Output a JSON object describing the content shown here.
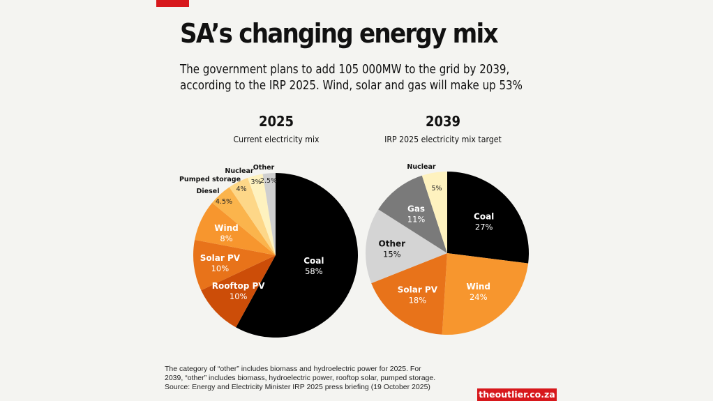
{
  "header": {
    "title": "SA’s changing energy mix",
    "subtitle_line1": "The government plans to add 105 000MW to the grid by 2039,",
    "subtitle_line2": "according to the IRP 2025. Wind, solar and gas will make up 53%",
    "accent_color": "#d7181c"
  },
  "chart_data": [
    {
      "type": "pie",
      "title": "2025",
      "subtitle": "Current electricity mix",
      "direction": "clockwise from top",
      "slices": [
        {
          "label": "Coal",
          "value": 58,
          "display": "58%",
          "color": "#000000",
          "text_color": "#ffffff",
          "label_position": "inside"
        },
        {
          "label": "Rooftop PV",
          "value": 10,
          "display": "10%",
          "color": "#cc4d08",
          "text_color": "#ffffff",
          "label_position": "inside"
        },
        {
          "label": "Solar PV",
          "value": 10,
          "display": "10%",
          "color": "#e8731a",
          "text_color": "#ffffff",
          "label_position": "inside"
        },
        {
          "label": "Wind",
          "value": 8,
          "display": "8%",
          "color": "#f7962e",
          "text_color": "#ffffff",
          "label_position": "inside"
        },
        {
          "label": "Diesel",
          "value": 4.5,
          "display": "4.5%",
          "color": "#fbb44c",
          "text_color": "#222222",
          "label_position": "outside"
        },
        {
          "label": "Pumped storage",
          "value": 4,
          "display": "4%",
          "color": "#fdd788",
          "text_color": "#222222",
          "label_position": "outside"
        },
        {
          "label": "Nuclear",
          "value": 3,
          "display": "3%",
          "color": "#fef2bf",
          "text_color": "#222222",
          "label_position": "outside"
        },
        {
          "label": "Other",
          "value": 2.5,
          "display": "2.5%",
          "color": "#cfcfcf",
          "text_color": "#222222",
          "label_position": "outside"
        }
      ]
    },
    {
      "type": "pie",
      "title": "2039",
      "subtitle": "IRP 2025 electricity mix target",
      "direction": "clockwise from top",
      "slices": [
        {
          "label": "Coal",
          "value": 27,
          "display": "27%",
          "color": "#000000",
          "text_color": "#ffffff",
          "label_position": "inside"
        },
        {
          "label": "Wind",
          "value": 24,
          "display": "24%",
          "color": "#f7962e",
          "text_color": "#ffffff",
          "label_position": "inside"
        },
        {
          "label": "Solar PV",
          "value": 18,
          "display": "18%",
          "color": "#e8731a",
          "text_color": "#ffffff",
          "label_position": "inside"
        },
        {
          "label": "Other",
          "value": 15,
          "display": "15%",
          "color": "#d4d4d4",
          "text_color": "#111111",
          "label_position": "inside"
        },
        {
          "label": "Gas",
          "value": 11,
          "display": "11%",
          "color": "#7a7a7a",
          "text_color": "#ffffff",
          "label_position": "inside"
        },
        {
          "label": "Nuclear",
          "value": 5,
          "display": "5%",
          "color": "#fef2bf",
          "text_color": "#222222",
          "label_position": "split"
        }
      ]
    }
  ],
  "footer": {
    "note_line1": "The category of “other” includes biomass and hydroelectric power for 2025. For",
    "note_line2": "2039, “other” includes biomass, hydroelectric power, rooftop solar, pumped storage.",
    "source": "Source: Energy and Electricity Minister IRP 2025 press briefing (19 October 2025)",
    "brand": "theoutlier.co.za"
  }
}
